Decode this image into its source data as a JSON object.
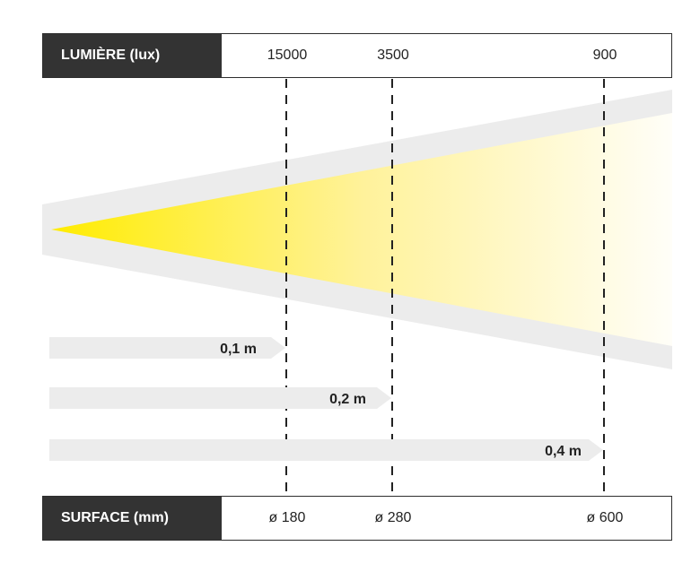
{
  "lux_header": {
    "label": "LUMIÈRE (lux)",
    "values": [
      "15000",
      "3500",
      "900"
    ]
  },
  "surface_header": {
    "label": "SURFACE (mm)",
    "values": [
      "ø 180",
      "ø 280",
      "ø 600"
    ]
  },
  "distances": [
    "0,1 m",
    "0,2 m",
    "0,4 m"
  ],
  "colors": {
    "header_bg": "#333333",
    "beam_start": "#ffec00",
    "beam_end": "#fffef8",
    "halo": "#ececec",
    "arrow": "#ececec"
  }
}
